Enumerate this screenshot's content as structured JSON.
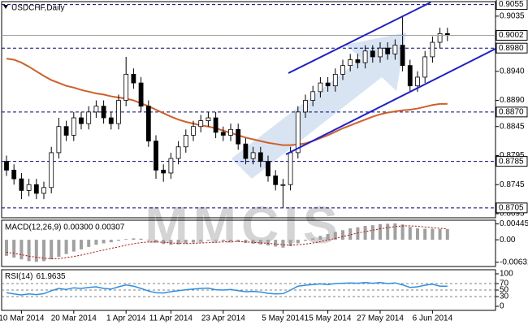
{
  "chart_data": {
    "type": "candlestick",
    "title": "USDCHF,Daily",
    "watermark": "MMCIS",
    "categories": [
      null,
      null,
      "10 Mar 2014",
      null,
      null,
      null,
      null,
      null,
      null,
      "20 Mar 2014",
      null,
      null,
      null,
      null,
      null,
      null,
      "1 Apr 2014",
      null,
      null,
      null,
      null,
      null,
      "11 Apr 2014",
      null,
      null,
      null,
      null,
      null,
      null,
      "23 Apr 2014",
      null,
      null,
      null,
      null,
      null,
      null,
      null,
      "5 May 2014",
      null,
      null,
      null,
      null,
      null,
      "15 May 2014",
      null,
      null,
      null,
      null,
      null,
      null,
      "27 May 2014",
      null,
      null,
      null,
      null,
      null,
      null,
      "6 Jun 2014",
      null,
      null
    ],
    "open": [
      0.8785,
      0.877,
      0.8755,
      0.8735,
      0.8745,
      0.873,
      0.874,
      0.88,
      0.8845,
      0.883,
      0.886,
      0.885,
      0.887,
      0.888,
      0.886,
      0.885,
      0.889,
      0.8935,
      0.892,
      0.888,
      0.882,
      0.877,
      0.8765,
      0.879,
      0.881,
      0.883,
      0.8845,
      0.8855,
      0.886,
      0.8835,
      0.883,
      0.884,
      0.8815,
      0.879,
      0.88,
      0.8785,
      0.876,
      0.8745,
      0.8745,
      0.88,
      0.887,
      0.889,
      0.8905,
      0.892,
      0.8915,
      0.8935,
      0.895,
      0.896,
      0.8955,
      0.8975,
      0.8965,
      0.898,
      0.897,
      0.8985,
      0.895,
      0.8915,
      0.893,
      0.8965,
      0.899,
      0.9005
    ],
    "high": [
      0.8795,
      0.878,
      0.8765,
      0.8755,
      0.8755,
      0.875,
      0.881,
      0.886,
      0.8855,
      0.887,
      0.887,
      0.888,
      0.889,
      0.889,
      0.887,
      0.89,
      0.8965,
      0.8945,
      0.893,
      0.889,
      0.883,
      0.878,
      0.88,
      0.882,
      0.884,
      0.8855,
      0.8865,
      0.887,
      0.887,
      0.8845,
      0.885,
      0.885,
      0.8825,
      0.881,
      0.881,
      0.8795,
      0.877,
      0.8755,
      0.881,
      0.888,
      0.89,
      0.8915,
      0.893,
      0.893,
      0.8945,
      0.896,
      0.897,
      0.897,
      0.8985,
      0.8985,
      0.899,
      0.899,
      0.8995,
      0.9035,
      0.896,
      0.894,
      0.8975,
      0.9,
      0.9015,
      0.9015
    ],
    "low": [
      0.876,
      0.8745,
      0.872,
      0.8725,
      0.872,
      0.872,
      0.873,
      0.879,
      0.882,
      0.882,
      0.884,
      0.884,
      0.886,
      0.885,
      0.884,
      0.884,
      0.888,
      0.891,
      0.887,
      0.881,
      0.8755,
      0.875,
      0.8755,
      0.878,
      0.88,
      0.882,
      0.8835,
      0.8845,
      0.8825,
      0.882,
      0.882,
      0.8805,
      0.878,
      0.878,
      0.8775,
      0.875,
      0.8735,
      0.8705,
      0.8735,
      0.879,
      0.886,
      0.888,
      0.8895,
      0.8905,
      0.8905,
      0.8925,
      0.894,
      0.8945,
      0.8945,
      0.8955,
      0.8955,
      0.896,
      0.896,
      0.894,
      0.8905,
      0.8905,
      0.892,
      0.8955,
      0.898,
      0.8992
    ],
    "close": [
      0.877,
      0.8755,
      0.8735,
      0.8745,
      0.873,
      0.874,
      0.88,
      0.8845,
      0.883,
      0.886,
      0.885,
      0.887,
      0.888,
      0.886,
      0.885,
      0.889,
      0.8935,
      0.892,
      0.888,
      0.882,
      0.877,
      0.8765,
      0.879,
      0.881,
      0.883,
      0.8845,
      0.8855,
      0.886,
      0.8835,
      0.883,
      0.884,
      0.8815,
      0.879,
      0.88,
      0.8785,
      0.876,
      0.8745,
      0.8745,
      0.88,
      0.887,
      0.889,
      0.8905,
      0.892,
      0.8915,
      0.8935,
      0.895,
      0.896,
      0.8955,
      0.8975,
      0.8965,
      0.898,
      0.897,
      0.8985,
      0.895,
      0.8915,
      0.893,
      0.8965,
      0.899,
      0.9005,
      0.9002
    ],
    "colors": {
      "up": "#ffffff",
      "down": "#000000",
      "outline": "#000000"
    },
    "ma": {
      "color": "#d0602a",
      "values": [
        0.8962,
        0.896,
        0.8955,
        0.8948,
        0.894,
        0.8932,
        0.8925,
        0.892,
        0.8915,
        0.8912,
        0.8908,
        0.8905,
        0.8902,
        0.89,
        0.8897,
        0.8895,
        0.8893,
        0.889,
        0.8885,
        0.888,
        0.8874,
        0.8868,
        0.8862,
        0.8857,
        0.8853,
        0.885,
        0.8847,
        0.8845,
        0.8842,
        0.8838,
        0.8834,
        0.883,
        0.8826,
        0.8823,
        0.882,
        0.8817,
        0.8815,
        0.8813,
        0.8813,
        0.8814,
        0.8816,
        0.882,
        0.8825,
        0.883,
        0.8836,
        0.8842,
        0.8847,
        0.8852,
        0.8857,
        0.8862,
        0.8866,
        0.8869,
        0.8871,
        0.8873,
        0.8874,
        0.8876,
        0.8879,
        0.8882,
        0.8884,
        0.8884
      ]
    },
    "ylim": [
      0.8688,
      0.906
    ],
    "yticks": [
      {
        "value": 0.9035,
        "label": "0.9035"
      },
      {
        "value": 0.894,
        "label": "0.8940"
      },
      {
        "value": 0.889,
        "label": "0.8890"
      },
      {
        "value": 0.8845,
        "label": "0.8845"
      },
      {
        "value": 0.8795,
        "label": "0.8795"
      },
      {
        "value": 0.8745,
        "label": "0.8745"
      },
      {
        "value": 0.8695,
        "label": "0.8695"
      }
    ],
    "levels": [
      {
        "value": 0.9055,
        "label": "0.9055"
      },
      {
        "value": 0.898,
        "label": "0.8980"
      },
      {
        "value": 0.887,
        "label": "0.8870"
      },
      {
        "value": 0.8785,
        "label": "0.8785"
      },
      {
        "value": 0.8705,
        "label": "0.8705"
      }
    ],
    "level_color": "#000080",
    "macd": {
      "label": "MACD(12,26,9) 0.00300 0.00307",
      "histogram": [
        -0.0045,
        -0.005,
        -0.0055,
        -0.006,
        -0.0062,
        -0.006,
        -0.0055,
        -0.0048,
        -0.004,
        -0.0033,
        -0.0027,
        -0.002,
        -0.0014,
        -0.001,
        -0.0007,
        -0.0003,
        0.0002,
        0.0004,
        0.0003,
        -0.0002,
        -0.0008,
        -0.0012,
        -0.0014,
        -0.0013,
        -0.0011,
        -0.0008,
        -0.0005,
        -0.0003,
        -0.0003,
        -0.0004,
        -0.0004,
        -0.0006,
        -0.0009,
        -0.0011,
        -0.0013,
        -0.0016,
        -0.0019,
        -0.0022,
        -0.0018,
        -0.001,
        -0.0003,
        0.0004,
        0.0011,
        0.0016,
        0.0022,
        0.0027,
        0.0032,
        0.0035,
        0.0039,
        0.0041,
        0.0044,
        0.0045,
        0.0046,
        0.0043,
        0.0036,
        0.0032,
        0.0031,
        0.0031,
        0.003,
        0.003
      ],
      "signal": [
        -0.0035,
        -0.0038,
        -0.0042,
        -0.0046,
        -0.0049,
        -0.0052,
        -0.0053,
        -0.0053,
        -0.005,
        -0.0047,
        -0.0043,
        -0.0038,
        -0.0033,
        -0.0029,
        -0.0024,
        -0.002,
        -0.0015,
        -0.0011,
        -0.0008,
        -0.0006,
        -0.0006,
        -0.0007,
        -0.0009,
        -0.001,
        -0.0011,
        -0.001,
        -0.0009,
        -0.0008,
        -0.0007,
        -0.0006,
        -0.0005,
        -0.0005,
        -0.0006,
        -0.0007,
        -0.0009,
        -0.001,
        -0.0012,
        -0.0014,
        -0.0015,
        -0.0014,
        -0.0012,
        -0.0009,
        -0.0005,
        -0.0001,
        0.0004,
        0.0009,
        0.0014,
        0.0019,
        0.0023,
        0.0027,
        0.0031,
        0.0034,
        0.0037,
        0.0039,
        0.0039,
        0.0038,
        0.0036,
        0.0034,
        0.0032,
        0.00307
      ],
      "histogram_color": "#a0a0a0",
      "signal_color": "#cc0000",
      "ylim": [
        -0.0075,
        0.0055
      ],
      "yticks": [
        {
          "value": 0.00445,
          "label": "0.00445"
        },
        {
          "value": 0,
          "label": "0.00"
        },
        {
          "value": -0.00631,
          "label": "-0.00631"
        }
      ]
    },
    "rsi": {
      "label": "RSI(14)",
      "color": "#2f8ee0",
      "values": [
        42,
        38,
        35,
        38,
        36,
        39,
        48,
        55,
        52,
        57,
        55,
        58,
        60,
        55,
        53,
        60,
        66,
        62,
        55,
        47,
        42,
        41,
        45,
        48,
        51,
        53,
        55,
        56,
        51,
        50,
        52,
        48,
        45,
        46,
        44,
        40,
        38,
        39,
        50,
        62,
        65,
        67,
        69,
        67,
        70,
        71,
        72,
        71,
        73,
        71,
        73,
        70,
        72,
        66,
        58,
        60,
        65,
        68,
        62,
        61.9635
      ],
      "ylim": [
        0,
        100
      ],
      "yticks": [
        100,
        70,
        50,
        30,
        0
      ]
    }
  }
}
